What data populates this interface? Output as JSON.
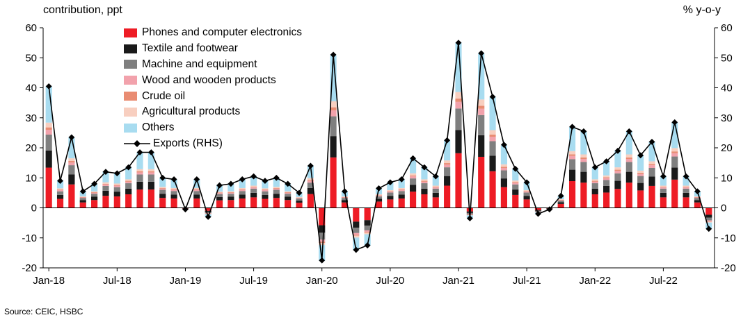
{
  "header": {
    "left_title": "contribution,  ppt",
    "right_title": "% y-o-y"
  },
  "source": {
    "text": "Source: CEIC, HSBC"
  },
  "chart_data": {
    "type": "bar",
    "subtype": "stacked-bar-with-line",
    "title": "Contribution to Vietnam export growth",
    "xlabel": "",
    "ylabel_left": "contribution, ppt",
    "ylabel_right": "% y-o-y",
    "left_axis": {
      "min": -20,
      "max": 60,
      "step": 10
    },
    "right_axis": {
      "min": -20,
      "max": 60,
      "step": 10
    },
    "grid": false,
    "legend_position": "top-left-inside",
    "categories": [
      "Jan-18",
      "Feb-18",
      "Mar-18",
      "Apr-18",
      "May-18",
      "Jun-18",
      "Jul-18",
      "Aug-18",
      "Sep-18",
      "Oct-18",
      "Nov-18",
      "Dec-18",
      "Jan-19",
      "Feb-19",
      "Mar-19",
      "Apr-19",
      "May-19",
      "Jun-19",
      "Jul-19",
      "Aug-19",
      "Sep-19",
      "Oct-19",
      "Nov-19",
      "Dec-19",
      "Jan-20",
      "Feb-20",
      "Mar-20",
      "Apr-20",
      "May-20",
      "Jun-20",
      "Jul-20",
      "Aug-20",
      "Sep-20",
      "Oct-20",
      "Nov-20",
      "Dec-20",
      "Jan-21",
      "Feb-21",
      "Mar-21",
      "Apr-21",
      "May-21",
      "Jun-21",
      "Jul-21",
      "Aug-21",
      "Sep-21",
      "Oct-21",
      "Nov-21",
      "Dec-21",
      "Jan-22",
      "Feb-22",
      "Mar-22",
      "Apr-22",
      "May-22",
      "Jun-22",
      "Jul-22",
      "Aug-22",
      "Sep-22",
      "Oct-22",
      "Nov-22"
    ],
    "x_ticks": [
      {
        "i": 0,
        "label": "Jan-18"
      },
      {
        "i": 6,
        "label": "Jul-18"
      },
      {
        "i": 12,
        "label": "Jan-19"
      },
      {
        "i": 18,
        "label": "Jul-19"
      },
      {
        "i": 24,
        "label": "Jan-20"
      },
      {
        "i": 30,
        "label": "Jul-20"
      },
      {
        "i": 36,
        "label": "Jan-21"
      },
      {
        "i": 42,
        "label": "Jul-21"
      },
      {
        "i": 48,
        "label": "Jan-22"
      },
      {
        "i": 54,
        "label": "Jul-22"
      }
    ],
    "series": [
      {
        "name": "Phones and computer electronics",
        "key": "phones",
        "color": "#ee1c25",
        "values": [
          13.4,
          3.0,
          7.8,
          1.8,
          2.6,
          4.0,
          3.8,
          4.5,
          6.1,
          6.1,
          3.3,
          3.1,
          -0.2,
          3.1,
          -1.0,
          2.5,
          2.6,
          3.1,
          3.5,
          3.0,
          3.3,
          2.6,
          1.7,
          4.6,
          -5.8,
          16.8,
          1.8,
          -4.6,
          -4.1,
          2.1,
          2.8,
          3.1,
          5.4,
          4.5,
          3.5,
          7.4,
          18.2,
          -1.2,
          17.0,
          12.2,
          6.9,
          4.3,
          2.8,
          -0.7,
          -0.2,
          1.3,
          8.9,
          8.4,
          4.5,
          5.1,
          6.3,
          8.4,
          5.8,
          7.3,
          3.5,
          9.4,
          3.5,
          1.8,
          -2.3
        ]
      },
      {
        "name": "Textile and footwear",
        "key": "textile",
        "color": "#1a1a1a",
        "values": [
          5.7,
          1.3,
          3.3,
          0.8,
          1.1,
          1.7,
          1.6,
          1.9,
          2.6,
          2.6,
          1.4,
          1.3,
          -0.1,
          1.3,
          -0.4,
          1.1,
          1.1,
          1.3,
          1.5,
          1.3,
          1.4,
          1.1,
          0.7,
          2.0,
          -2.5,
          7.1,
          0.8,
          -2.0,
          -1.8,
          0.9,
          1.2,
          1.3,
          2.3,
          1.9,
          1.5,
          3.2,
          7.7,
          -0.5,
          7.2,
          5.2,
          2.9,
          1.8,
          1.2,
          -0.3,
          -0.1,
          0.6,
          3.8,
          3.6,
          1.9,
          2.2,
          2.7,
          3.6,
          2.5,
          3.1,
          1.5,
          4.0,
          1.5,
          0.8,
          -1.0
        ]
      },
      {
        "name": "Machine and equipment",
        "key": "machine",
        "color": "#7f7f7f",
        "values": [
          5.3,
          1.2,
          3.1,
          0.7,
          1.0,
          1.6,
          1.5,
          1.8,
          2.4,
          2.4,
          1.3,
          1.2,
          -0.1,
          1.2,
          -0.4,
          1.0,
          1.0,
          1.2,
          1.4,
          1.2,
          1.3,
          1.0,
          0.7,
          1.8,
          -2.3,
          6.6,
          0.7,
          -1.8,
          -1.6,
          0.8,
          1.1,
          1.2,
          2.1,
          1.8,
          1.4,
          2.9,
          7.2,
          -0.5,
          6.7,
          4.8,
          2.7,
          1.7,
          1.1,
          -0.3,
          -0.1,
          0.5,
          3.5,
          3.3,
          1.8,
          2.0,
          2.5,
          3.3,
          2.3,
          2.9,
          1.4,
          3.7,
          1.4,
          0.7,
          -0.9
        ]
      },
      {
        "name": "Wood and wooden products",
        "key": "wood",
        "color": "#f2a2ac",
        "values": [
          1.6,
          0.4,
          0.9,
          0.2,
          0.3,
          0.5,
          0.5,
          0.5,
          0.7,
          0.7,
          0.4,
          0.4,
          0.0,
          0.4,
          -0.1,
          0.3,
          0.3,
          0.4,
          0.4,
          0.4,
          0.4,
          0.3,
          0.2,
          0.6,
          -0.7,
          2.0,
          0.2,
          -0.6,
          -0.5,
          0.3,
          0.3,
          0.4,
          0.7,
          0.5,
          0.4,
          0.9,
          2.2,
          -0.1,
          2.1,
          1.5,
          0.8,
          0.5,
          0.3,
          -0.1,
          0.0,
          0.2,
          1.1,
          1.0,
          0.5,
          0.6,
          0.8,
          1.0,
          0.7,
          0.9,
          0.4,
          1.1,
          0.4,
          0.2,
          -0.3
        ]
      },
      {
        "name": "Crude oil",
        "key": "crude-oil",
        "color": "#e98c72",
        "values": [
          0.8,
          0.2,
          0.5,
          0.1,
          0.2,
          0.2,
          0.2,
          0.3,
          0.4,
          0.4,
          0.2,
          0.2,
          0.0,
          0.2,
          -0.1,
          0.2,
          0.2,
          0.2,
          0.2,
          0.2,
          0.2,
          0.2,
          0.1,
          0.3,
          -0.4,
          1.0,
          0.1,
          -0.3,
          -0.3,
          0.1,
          0.2,
          0.2,
          0.3,
          0.3,
          0.2,
          0.5,
          1.1,
          -0.1,
          1.0,
          0.7,
          0.4,
          0.3,
          0.2,
          0.0,
          0.0,
          0.1,
          0.5,
          0.5,
          0.3,
          0.3,
          0.4,
          0.5,
          0.4,
          0.4,
          0.2,
          0.6,
          0.2,
          0.1,
          -0.1
        ]
      },
      {
        "name": "Agricultural products",
        "key": "agricultural",
        "color": "#f8cfc0",
        "values": [
          1.6,
          0.4,
          0.9,
          0.2,
          0.3,
          0.5,
          0.5,
          0.5,
          0.7,
          0.7,
          0.4,
          0.4,
          0.0,
          0.4,
          -0.1,
          0.3,
          0.3,
          0.4,
          0.4,
          0.4,
          0.4,
          0.3,
          0.2,
          0.6,
          -0.7,
          2.0,
          0.2,
          -0.6,
          -0.5,
          0.3,
          0.3,
          0.4,
          0.7,
          0.5,
          0.4,
          0.9,
          2.2,
          -0.1,
          2.1,
          1.5,
          0.8,
          0.5,
          0.3,
          -0.1,
          0.0,
          0.2,
          1.1,
          1.0,
          0.5,
          0.6,
          0.8,
          1.0,
          0.7,
          0.9,
          0.4,
          1.1,
          0.4,
          0.2,
          -0.3
        ]
      },
      {
        "name": "Others",
        "key": "others",
        "color": "#a8dcf0",
        "values": [
          12.2,
          2.7,
          7.1,
          1.7,
          2.4,
          3.6,
          3.5,
          4.1,
          5.6,
          5.6,
          3.0,
          2.9,
          -0.1,
          2.9,
          -0.9,
          2.3,
          2.4,
          2.9,
          3.2,
          2.7,
          3.0,
          2.4,
          1.5,
          4.2,
          -5.3,
          15.3,
          1.7,
          -4.2,
          -3.8,
          2.0,
          2.6,
          2.9,
          5.0,
          4.1,
          3.2,
          6.8,
          16.5,
          -1.1,
          15.5,
          11.1,
          6.3,
          3.9,
          2.6,
          -0.6,
          -0.1,
          1.2,
          8.1,
          7.7,
          4.1,
          4.7,
          5.7,
          7.7,
          5.3,
          6.6,
          3.2,
          8.6,
          3.2,
          1.7,
          -2.1
        ]
      }
    ],
    "line_series": {
      "name": "Exports (RHS)",
      "key": "exports",
      "color": "#000000",
      "marker": "diamond",
      "values": [
        40.5,
        9,
        23.5,
        5.5,
        8,
        12,
        11.5,
        13.5,
        18.5,
        18.5,
        10,
        9.5,
        -0.5,
        9.5,
        -3,
        7.5,
        8,
        9.5,
        10.5,
        9,
        10,
        8,
        5,
        14,
        -17.5,
        51,
        5.5,
        -14,
        -12.5,
        6.5,
        8.5,
        9.5,
        16.5,
        13.5,
        10.5,
        22.5,
        55,
        -3.5,
        51.5,
        37,
        21,
        13,
        8.5,
        -2,
        -0.5,
        4,
        27,
        25.5,
        13.5,
        15.5,
        19,
        25.5,
        17.5,
        22,
        10.5,
        28.5,
        10.5,
        5.5,
        -7
      ]
    },
    "legend": [
      {
        "key": "phones",
        "label": "Phones and computer electronics",
        "color": "#ee1c25",
        "marker": "box"
      },
      {
        "key": "textile",
        "label": "Textile and footwear",
        "color": "#1a1a1a",
        "marker": "box"
      },
      {
        "key": "machine",
        "label": "Machine and equipment",
        "color": "#7f7f7f",
        "marker": "box"
      },
      {
        "key": "wood",
        "label": "Wood and wooden products",
        "color": "#f2a2ac",
        "marker": "box"
      },
      {
        "key": "crude-oil",
        "label": "Crude oil",
        "color": "#e98c72",
        "marker": "box"
      },
      {
        "key": "agricultural",
        "label": "Agricultural products",
        "color": "#f8cfc0",
        "marker": "box"
      },
      {
        "key": "others",
        "label": "Others",
        "color": "#a8dcf0",
        "marker": "box"
      },
      {
        "key": "exports",
        "label": "Exports (RHS)",
        "color": "#000000",
        "marker": "line-diamond"
      }
    ]
  }
}
